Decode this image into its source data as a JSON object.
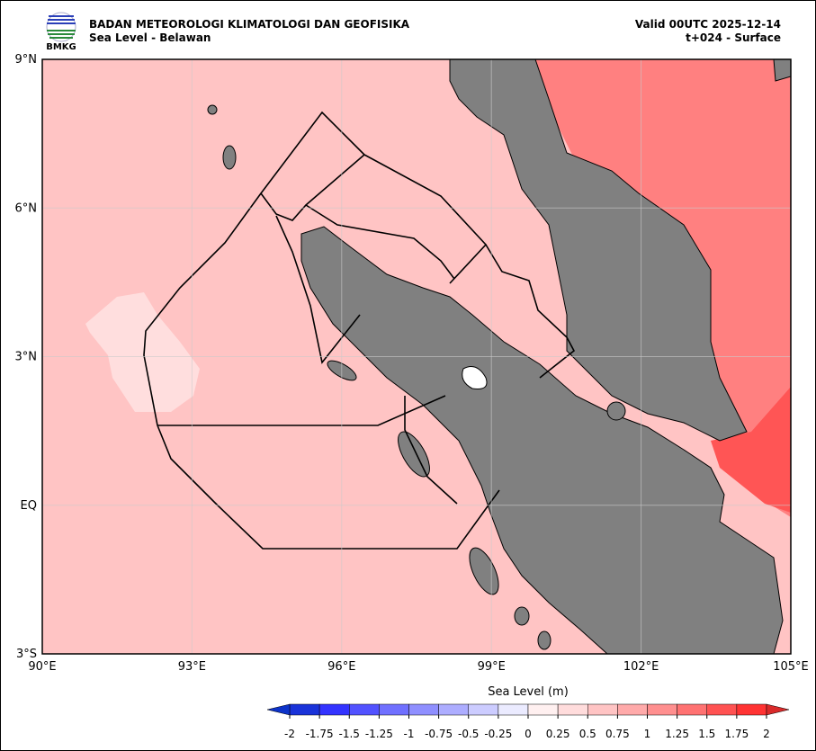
{
  "header": {
    "logo_text": "BMKG",
    "title": "BADAN METEOROLOGI KLIMATOLOGI DAN GEOFISIKA",
    "subtitle": "Sea Level - Belawan",
    "valid": "Valid 00UTC 2025-12-14",
    "step": "t+024 - Surface"
  },
  "map": {
    "xlim": [
      90,
      105
    ],
    "ylim": [
      -3,
      9
    ],
    "xticks": [
      {
        "value": 90,
        "label": "90°E"
      },
      {
        "value": 93,
        "label": "93°E"
      },
      {
        "value": 96,
        "label": "96°E"
      },
      {
        "value": 99,
        "label": "99°E"
      },
      {
        "value": 102,
        "label": "102°E"
      },
      {
        "value": 105,
        "label": "105°E"
      }
    ],
    "yticks": [
      {
        "value": 9,
        "label": "9°N"
      },
      {
        "value": 6,
        "label": "6°N"
      },
      {
        "value": 3,
        "label": "3°N"
      },
      {
        "value": 0,
        "label": "EQ"
      },
      {
        "value": -3,
        "label": "3°S"
      }
    ],
    "grid": true
  },
  "colorbar": {
    "label": "Sea Level (m)",
    "levels": [
      -2,
      -1.75,
      -1.5,
      -1.25,
      -1,
      -0.75,
      -0.5,
      -0.25,
      0,
      0.25,
      0.5,
      0.75,
      1,
      1.25,
      1.5,
      1.75,
      2
    ],
    "colors": [
      "#1a33d9",
      "#3333ff",
      "#5252ff",
      "#7070ff",
      "#8f8fff",
      "#adadff",
      "#ccccff",
      "#ebebff",
      "#fff0f0",
      "#ffdcdc",
      "#ffc4c4",
      "#ffaaaa",
      "#ff8f8f",
      "#ff7272",
      "#ff5252",
      "#ff3333"
    ],
    "under_color": "#0d33c9",
    "over_color": "#d92a2a"
  }
}
